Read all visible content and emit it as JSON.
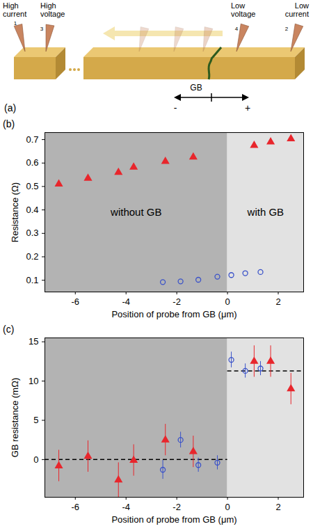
{
  "panel_a": {
    "letter": "(a)",
    "probes": [
      {
        "number": "1",
        "label": "High current"
      },
      {
        "number": "3",
        "label": "High voltage"
      },
      {
        "number": "4",
        "label": "Low voltage"
      },
      {
        "number": "2",
        "label": "Low current"
      }
    ],
    "boundary_label": "GB",
    "direction_labels": [
      "-",
      "+"
    ]
  },
  "chart_data": [
    {
      "panel_label": "(b)",
      "type": "scatter",
      "x_label": "Position of probe from GB (μm)",
      "y_label": "Resistance (Ω)",
      "xlim": [
        -7.2,
        3
      ],
      "xticks": [
        -6,
        -4,
        -2,
        0,
        2
      ],
      "ylim": [
        0.05,
        0.73
      ],
      "yticks": [
        0.1,
        0.2,
        0.3,
        0.4,
        0.5,
        0.6,
        0.7
      ],
      "regions": [
        {
          "label": "without GB",
          "from": -7.2,
          "to": 0,
          "color": "#b3b3b3"
        },
        {
          "label": "with GB",
          "from": 0,
          "to": 3,
          "color": "#e2e2e2"
        }
      ],
      "series": [
        {
          "color": "#e8262c",
          "marker": "triangle",
          "x": [
            -6.65,
            -5.5,
            -4.3,
            -3.7,
            -2.45,
            -1.35,
            1.05,
            1.7,
            2.5
          ],
          "values": [
            0.51,
            0.535,
            0.56,
            0.582,
            0.607,
            0.625,
            0.675,
            0.69,
            0.703
          ]
        },
        {
          "color": "#3a52c9",
          "marker": "open_circle",
          "x": [
            -2.55,
            -1.85,
            -1.15,
            -0.4,
            0.15,
            0.7,
            1.3
          ],
          "values": [
            0.092,
            0.095,
            0.102,
            0.115,
            0.122,
            0.13,
            0.135
          ]
        }
      ]
    },
    {
      "panel_label": "(c)",
      "type": "scatter",
      "x_label": "Position of probe from GB (μm)",
      "y_label": "GB resistance (mΩ)",
      "xlim": [
        -7.2,
        3
      ],
      "xticks": [
        -6,
        -4,
        -2,
        0,
        2
      ],
      "ylim": [
        -4.8,
        15.5
      ],
      "yticks": [
        0,
        5,
        10,
        15
      ],
      "regions": [
        {
          "from": -7.2,
          "to": 0,
          "color": "#b3b3b3"
        },
        {
          "from": 0,
          "to": 3,
          "color": "#e2e2e2"
        }
      ],
      "reference_lines": [
        {
          "from": -7.2,
          "to": 0,
          "value": 0,
          "line_style": "dashed"
        },
        {
          "from": 0,
          "to": 3,
          "value": 11.3,
          "line_style": "dashed"
        }
      ],
      "series": [
        {
          "color": "#e8262c",
          "marker": "triangle",
          "x": [
            -6.65,
            -5.5,
            -4.3,
            -3.7,
            -2.45,
            -1.35,
            1.05,
            1.7,
            2.5
          ],
          "values": [
            -0.8,
            0.4,
            -2.6,
            -0.1,
            2.5,
            1.0,
            12.5,
            12.5,
            9.0
          ],
          "errors": [
            2.0,
            2.0,
            2.2,
            2.0,
            2.0,
            2.0,
            2.0,
            2.0,
            2.0
          ]
        },
        {
          "color": "#3a52c9",
          "marker": "open_circle",
          "x": [
            -2.55,
            -1.85,
            -1.15,
            -0.4,
            0.15,
            0.7,
            1.3
          ],
          "values": [
            -1.3,
            2.5,
            -0.7,
            -0.4,
            12.7,
            11.3,
            11.6
          ],
          "errors": [
            1.2,
            1.0,
            0.9,
            0.9,
            1.0,
            0.9,
            0.9
          ]
        }
      ]
    }
  ]
}
